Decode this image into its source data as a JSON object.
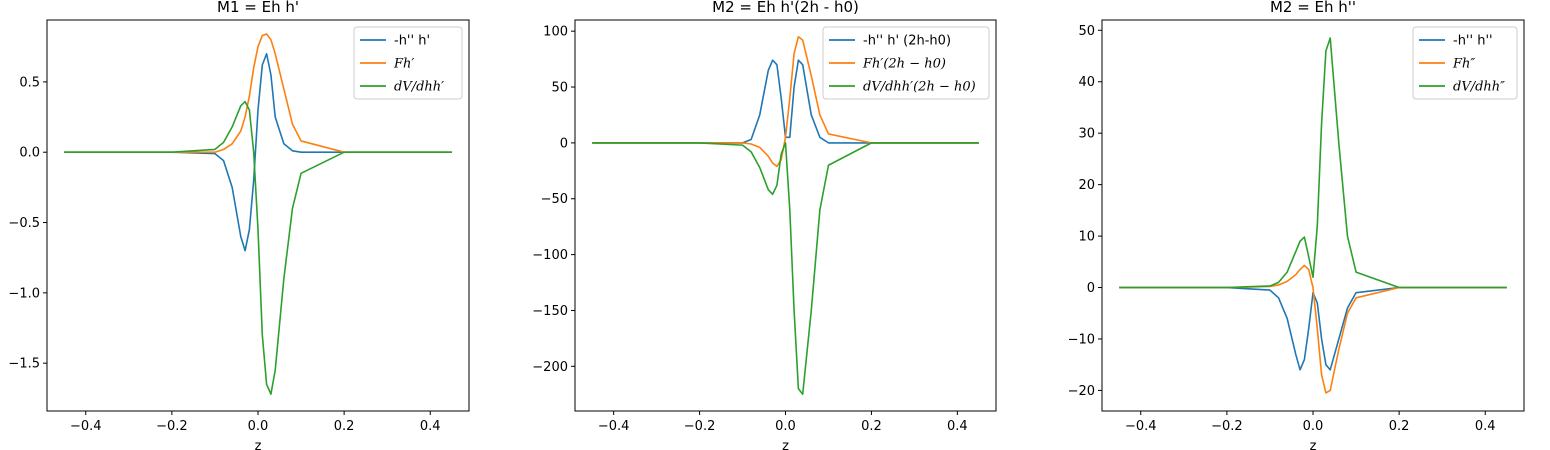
{
  "chart_data": [
    {
      "type": "line",
      "title": "M1 = Eh h'",
      "xlabel": "z",
      "ylabel": "",
      "xlim": [
        -0.49,
        0.49
      ],
      "ylim": [
        -1.84,
        0.94
      ],
      "xticks": [
        -0.4,
        -0.2,
        0.0,
        0.2,
        0.4
      ],
      "xtick_labels": [
        "−0.4",
        "−0.2",
        "0.0",
        "0.2",
        "0.4"
      ],
      "yticks": [
        -1.5,
        -1.0,
        -0.5,
        0.0,
        0.5
      ],
      "ytick_labels": [
        "−1.5",
        "−1.0",
        "−0.5",
        "0.0",
        "0.5"
      ],
      "grid": false,
      "legend_position": "top-right",
      "x": [
        -0.45,
        -0.2,
        -0.1,
        -0.08,
        -0.06,
        -0.04,
        -0.03,
        -0.02,
        -0.01,
        0.0,
        0.01,
        0.02,
        0.03,
        0.04,
        0.06,
        0.08,
        0.1,
        0.2,
        0.45
      ],
      "series": [
        {
          "name": "-h'' h'",
          "color": "#1f77b4",
          "values": [
            0,
            0,
            -0.01,
            -0.06,
            -0.25,
            -0.6,
            -0.7,
            -0.55,
            -0.2,
            0.3,
            0.62,
            0.7,
            0.55,
            0.25,
            0.06,
            0.01,
            0,
            0,
            0
          ]
        },
        {
          "name": "Fh′",
          "color": "#ff7f0e",
          "values": [
            0,
            0,
            0,
            0.02,
            0.06,
            0.15,
            0.25,
            0.4,
            0.6,
            0.75,
            0.83,
            0.84,
            0.8,
            0.7,
            0.45,
            0.2,
            0.08,
            0,
            0
          ]
        },
        {
          "name": "dV/dhh′",
          "color": "#2ca02c",
          "values": [
            0,
            0,
            0.02,
            0.07,
            0.18,
            0.33,
            0.36,
            0.3,
            0.0,
            -0.55,
            -1.3,
            -1.65,
            -1.72,
            -1.55,
            -0.9,
            -0.4,
            -0.15,
            0,
            0
          ]
        }
      ]
    },
    {
      "type": "line",
      "title": "M2 = Eh h'(2h - h0)",
      "xlabel": "z",
      "ylabel": "",
      "xlim": [
        -0.49,
        0.49
      ],
      "ylim": [
        -240,
        110
      ],
      "xticks": [
        -0.4,
        -0.2,
        0.0,
        0.2,
        0.4
      ],
      "xtick_labels": [
        "−0.4",
        "−0.2",
        "0.0",
        "0.2",
        "0.4"
      ],
      "yticks": [
        -200,
        -150,
        -100,
        -50,
        0,
        50,
        100
      ],
      "ytick_labels": [
        "−200",
        "−150",
        "−100",
        "−50",
        "0",
        "50",
        "100"
      ],
      "grid": false,
      "legend_position": "top-right",
      "x": [
        -0.45,
        -0.2,
        -0.1,
        -0.08,
        -0.06,
        -0.04,
        -0.03,
        -0.02,
        -0.01,
        0.0,
        0.01,
        0.02,
        0.03,
        0.04,
        0.06,
        0.08,
        0.1,
        0.2,
        0.45
      ],
      "series": [
        {
          "name": "-h'' h' (2h-h0)",
          "color": "#1f77b4",
          "values": [
            0,
            0,
            0,
            3,
            25,
            65,
            74,
            70,
            40,
            5,
            5,
            50,
            74,
            70,
            25,
            5,
            0,
            0,
            0
          ]
        },
        {
          "name": "Fh′(2h − h0)",
          "color": "#ff7f0e",
          "values": [
            0,
            0,
            0,
            -1,
            -4,
            -12,
            -18,
            -21,
            -15,
            5,
            40,
            80,
            95,
            92,
            60,
            25,
            8,
            0,
            0
          ]
        },
        {
          "name": "dV/dhh′(2h − h0)",
          "color": "#2ca02c",
          "values": [
            0,
            0,
            -2,
            -8,
            -22,
            -42,
            -46,
            -38,
            -10,
            0,
            -60,
            -150,
            -220,
            -225,
            -150,
            -60,
            -20,
            0,
            0
          ]
        }
      ]
    },
    {
      "type": "line",
      "title": "M2 = Eh h''",
      "xlabel": "z",
      "ylabel": "",
      "xlim": [
        -0.49,
        0.49
      ],
      "ylim": [
        -24,
        52
      ],
      "xticks": [
        -0.4,
        -0.2,
        0.0,
        0.2,
        0.4
      ],
      "xtick_labels": [
        "−0.4",
        "−0.2",
        "0.0",
        "0.2",
        "0.4"
      ],
      "yticks": [
        -20,
        -10,
        0,
        10,
        20,
        30,
        40,
        50
      ],
      "ytick_labels": [
        "−20",
        "−10",
        "0",
        "10",
        "20",
        "30",
        "40",
        "50"
      ],
      "grid": false,
      "legend_position": "top-right",
      "x": [
        -0.45,
        -0.2,
        -0.1,
        -0.08,
        -0.06,
        -0.04,
        -0.03,
        -0.02,
        -0.01,
        0.0,
        0.01,
        0.02,
        0.03,
        0.04,
        0.06,
        0.08,
        0.1,
        0.2,
        0.45
      ],
      "series": [
        {
          "name": "-h'' h''",
          "color": "#1f77b4",
          "values": [
            0,
            0,
            -0.5,
            -2,
            -6,
            -13,
            -16,
            -14,
            -8,
            -1,
            -3,
            -10,
            -15,
            -16,
            -10,
            -4,
            -1,
            0,
            0
          ]
        },
        {
          "name": "Fh″",
          "color": "#ff7f0e",
          "values": [
            0,
            0,
            0.2,
            0.5,
            1.2,
            2.5,
            3.5,
            4.3,
            3.5,
            0,
            -8,
            -17,
            -20.5,
            -20,
            -12,
            -5,
            -2,
            0,
            0
          ]
        },
        {
          "name": "dV/dhh″",
          "color": "#2ca02c",
          "values": [
            0,
            0,
            0.3,
            1,
            3,
            7,
            9,
            9.8,
            6,
            2,
            12,
            32,
            46,
            48.5,
            28,
            10,
            3,
            0,
            0
          ]
        }
      ]
    }
  ]
}
